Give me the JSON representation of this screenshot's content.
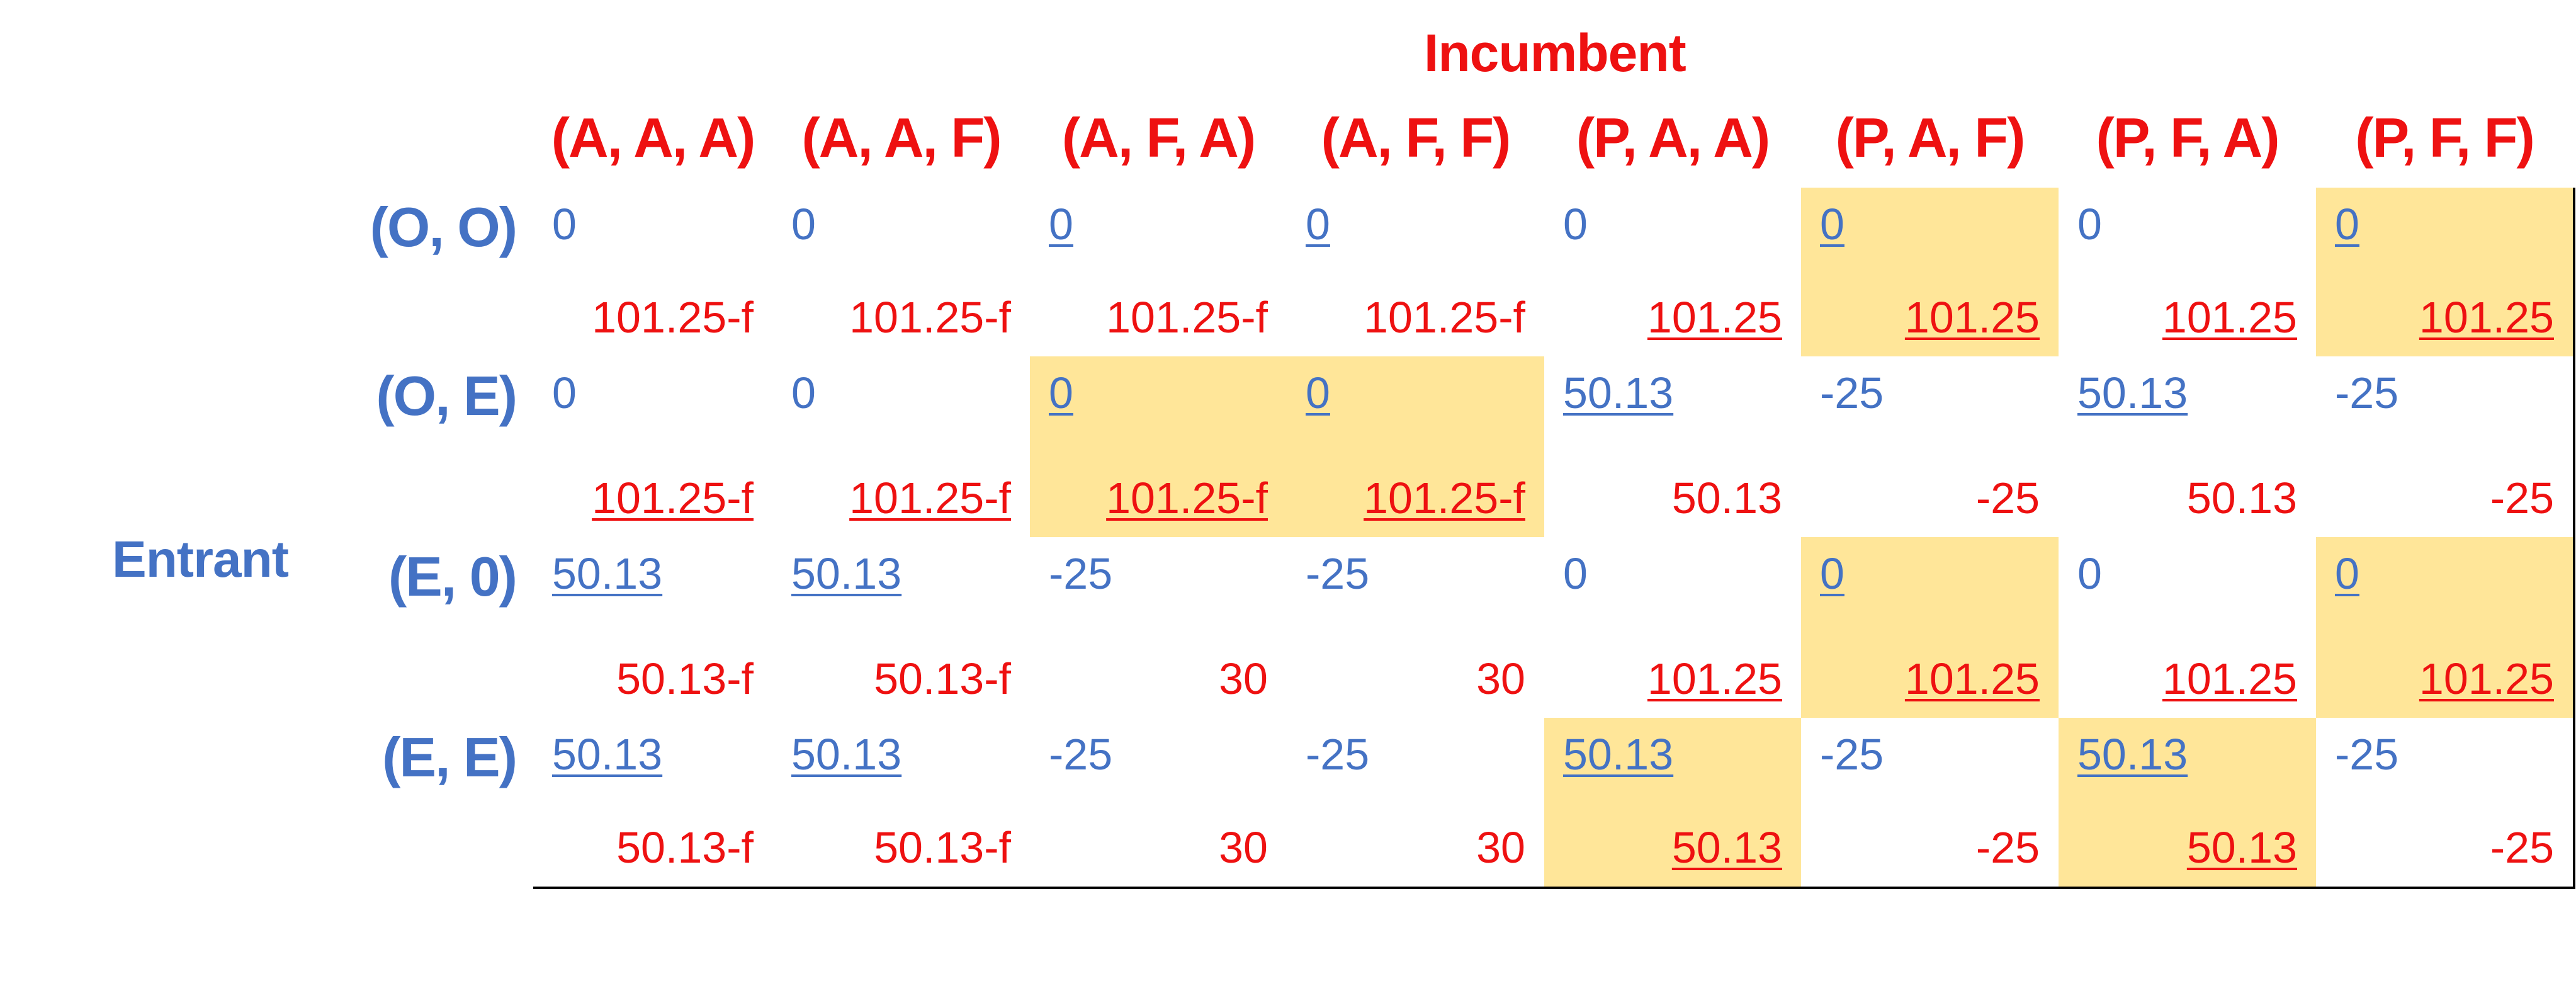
{
  "title": "Incumbent",
  "row_player": "Entrant",
  "columns": [
    "(A, A, A)",
    "(A, A, F)",
    "(A, F, A)",
    "(A, F, F)",
    "(P, A, A)",
    "(P, A, F)",
    "(P, F, A)",
    "(P, F, F)"
  ],
  "rows": [
    "(O, O)",
    "(O, E)",
    "(E, 0)",
    "(E, E)"
  ],
  "colors": {
    "entrant": "#4472c4",
    "incumbent": "#ee1111",
    "highlight": "#ffe699"
  },
  "cells": [
    [
      {
        "entrant": "0",
        "incumbent": "101.25-f",
        "e_best": false,
        "i_best": false,
        "highlight": false
      },
      {
        "entrant": "0",
        "incumbent": "101.25-f",
        "e_best": false,
        "i_best": false,
        "highlight": false
      },
      {
        "entrant": "0",
        "incumbent": "101.25-f",
        "e_best": true,
        "i_best": false,
        "highlight": false
      },
      {
        "entrant": "0",
        "incumbent": "101.25-f",
        "e_best": true,
        "i_best": false,
        "highlight": false
      },
      {
        "entrant": "0",
        "incumbent": "101.25",
        "e_best": false,
        "i_best": true,
        "highlight": false
      },
      {
        "entrant": "0",
        "incumbent": "101.25",
        "e_best": true,
        "i_best": true,
        "highlight": true
      },
      {
        "entrant": "0",
        "incumbent": "101.25",
        "e_best": false,
        "i_best": true,
        "highlight": false
      },
      {
        "entrant": "0",
        "incumbent": "101.25",
        "e_best": true,
        "i_best": true,
        "highlight": true
      }
    ],
    [
      {
        "entrant": "0",
        "incumbent": "101.25-f",
        "e_best": false,
        "i_best": true,
        "highlight": false
      },
      {
        "entrant": "0",
        "incumbent": "101.25-f",
        "e_best": false,
        "i_best": true,
        "highlight": false
      },
      {
        "entrant": "0",
        "incumbent": "101.25-f",
        "e_best": true,
        "i_best": true,
        "highlight": true
      },
      {
        "entrant": "0",
        "incumbent": "101.25-f",
        "e_best": true,
        "i_best": true,
        "highlight": true
      },
      {
        "entrant": "50.13",
        "incumbent": "50.13",
        "e_best": true,
        "i_best": false,
        "highlight": false
      },
      {
        "entrant": "-25",
        "incumbent": "-25",
        "e_best": false,
        "i_best": false,
        "highlight": false
      },
      {
        "entrant": "50.13",
        "incumbent": "50.13",
        "e_best": true,
        "i_best": false,
        "highlight": false
      },
      {
        "entrant": "-25",
        "incumbent": "-25",
        "e_best": false,
        "i_best": false,
        "highlight": false
      }
    ],
    [
      {
        "entrant": "50.13",
        "incumbent": "50.13-f",
        "e_best": true,
        "i_best": false,
        "highlight": false
      },
      {
        "entrant": "50.13",
        "incumbent": "50.13-f",
        "e_best": true,
        "i_best": false,
        "highlight": false
      },
      {
        "entrant": "-25",
        "incumbent": "30",
        "e_best": false,
        "i_best": false,
        "highlight": false
      },
      {
        "entrant": "-25",
        "incumbent": "30",
        "e_best": false,
        "i_best": false,
        "highlight": false
      },
      {
        "entrant": "0",
        "incumbent": "101.25",
        "e_best": false,
        "i_best": true,
        "highlight": false
      },
      {
        "entrant": "0",
        "incumbent": "101.25",
        "e_best": true,
        "i_best": true,
        "highlight": true
      },
      {
        "entrant": "0",
        "incumbent": "101.25",
        "e_best": false,
        "i_best": true,
        "highlight": false
      },
      {
        "entrant": "0",
        "incumbent": "101.25",
        "e_best": true,
        "i_best": true,
        "highlight": true
      }
    ],
    [
      {
        "entrant": "50.13",
        "incumbent": "50.13-f",
        "e_best": true,
        "i_best": false,
        "highlight": false
      },
      {
        "entrant": "50.13",
        "incumbent": "50.13-f",
        "e_best": true,
        "i_best": false,
        "highlight": false
      },
      {
        "entrant": "-25",
        "incumbent": "30",
        "e_best": false,
        "i_best": false,
        "highlight": false
      },
      {
        "entrant": "-25",
        "incumbent": "30",
        "e_best": false,
        "i_best": false,
        "highlight": false
      },
      {
        "entrant": "50.13",
        "incumbent": "50.13",
        "e_best": true,
        "i_best": true,
        "highlight": true
      },
      {
        "entrant": "-25",
        "incumbent": "-25",
        "e_best": false,
        "i_best": false,
        "highlight": false
      },
      {
        "entrant": "50.13",
        "incumbent": "50.13",
        "e_best": true,
        "i_best": true,
        "highlight": true
      },
      {
        "entrant": "-25",
        "incumbent": "-25",
        "e_best": false,
        "i_best": false,
        "highlight": false
      }
    ]
  ]
}
